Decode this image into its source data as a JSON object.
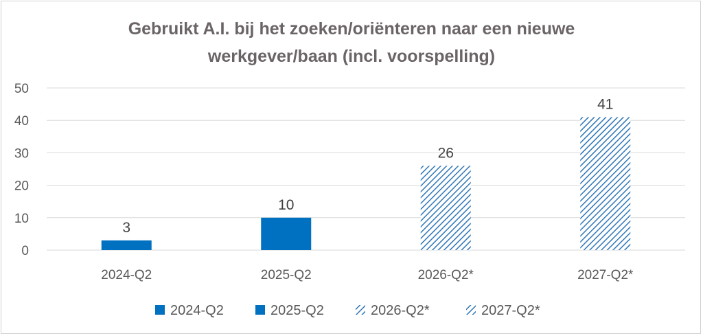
{
  "chart_data": {
    "type": "bar",
    "title_lines": [
      "Gebruikt A.I. bij het zoeken/oriënteren naar een nieuwe",
      "werkgever/baan (incl. voorspelling)"
    ],
    "categories": [
      "2024-Q2",
      "2025-Q2",
      "2026-Q2*",
      "2027-Q2*"
    ],
    "values": [
      3,
      10,
      26,
      41
    ],
    "data_labels": [
      "3",
      "10",
      "26",
      "41"
    ],
    "fill_styles": [
      "solid",
      "solid",
      "hatched",
      "hatched"
    ],
    "legend": [
      "2024-Q2",
      "2025-Q2",
      "2026-Q2*",
      "2027-Q2*"
    ],
    "legend_position": "bottom",
    "ylim": [
      0,
      50
    ],
    "yticks": [
      "0",
      "10",
      "20",
      "30",
      "40",
      "50"
    ],
    "ytick_values": [
      0,
      10,
      20,
      30,
      40,
      50
    ],
    "grid": true,
    "bar_color": "#0070c0",
    "grid_color": "#d9d9d9"
  }
}
